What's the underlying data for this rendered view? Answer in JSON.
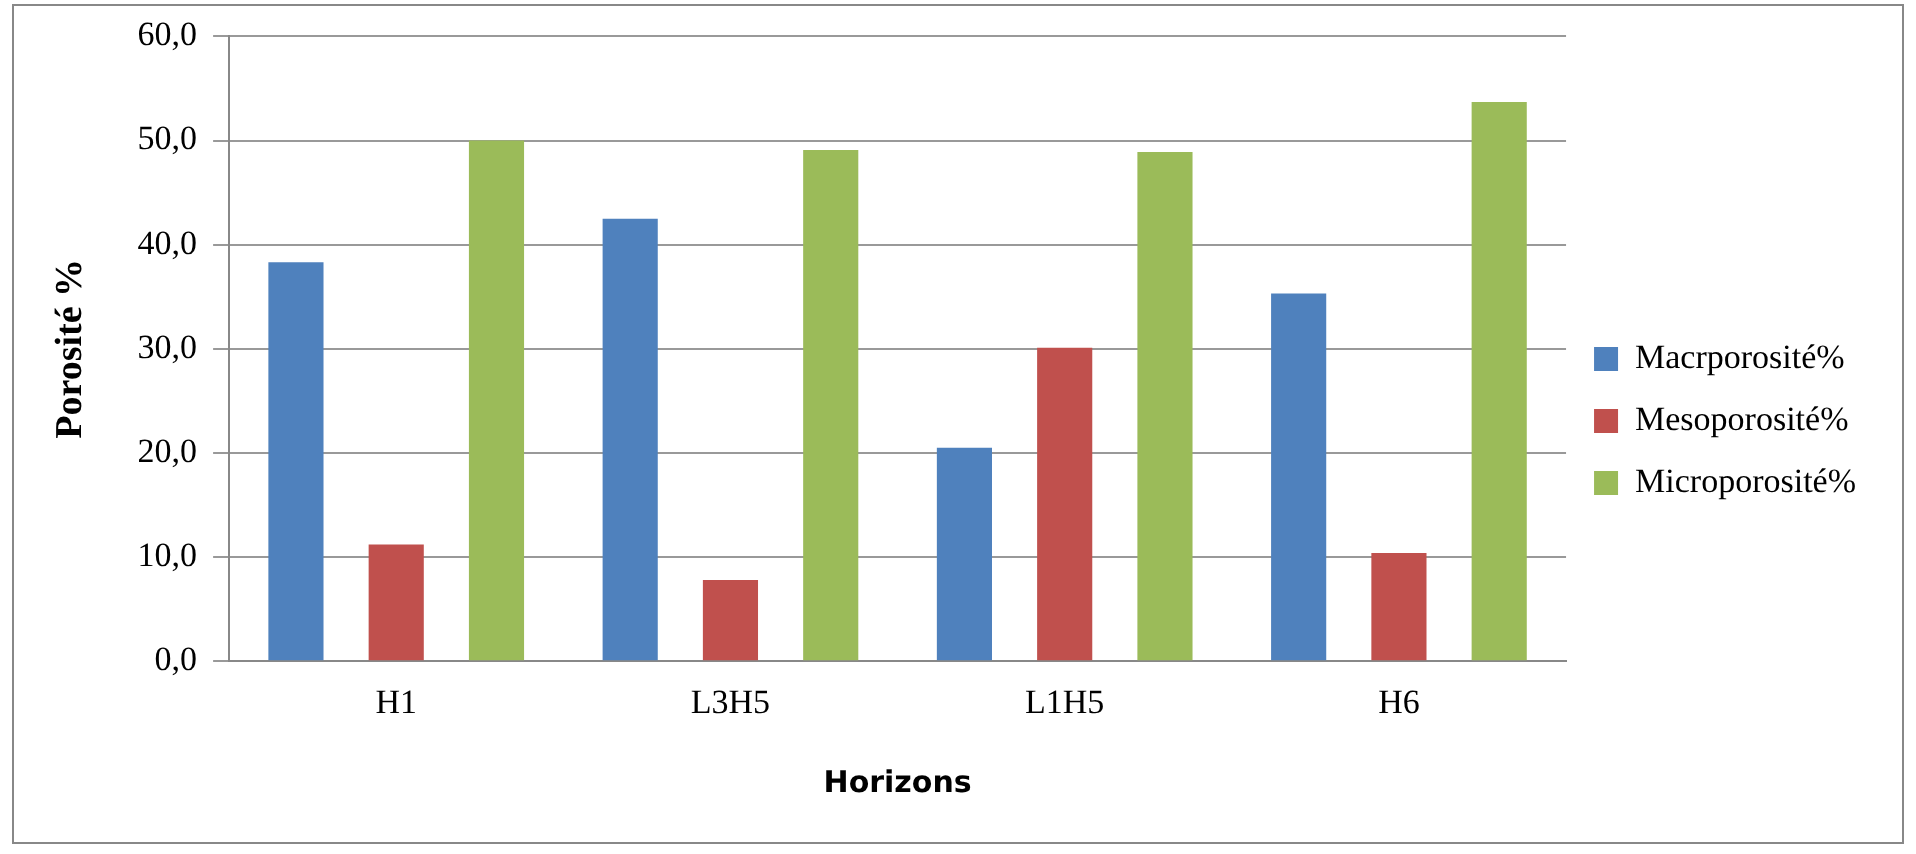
{
  "chart_data": {
    "type": "bar",
    "xlabel": "Horizons",
    "ylabel": "Porosité %",
    "categories": [
      "H1",
      "L3H5",
      "L1H5",
      "H6"
    ],
    "series": [
      {
        "name": "Macrporosité%",
        "color": "#4f81bd",
        "values": [
          38.3,
          42.5,
          20.5,
          35.3
        ]
      },
      {
        "name": "Mesoporosité%",
        "color": "#c0504d",
        "values": [
          11.2,
          7.8,
          30.1,
          10.4
        ]
      },
      {
        "name": "Microporosité%",
        "color": "#9bbb59",
        "values": [
          50.0,
          49.1,
          48.9,
          53.7
        ]
      }
    ],
    "ylim": [
      0,
      60
    ],
    "yticks": [
      {
        "value": 0,
        "label": "0,0"
      },
      {
        "value": 10,
        "label": "10,0"
      },
      {
        "value": 20,
        "label": "20,0"
      },
      {
        "value": 30,
        "label": "30,0"
      },
      {
        "value": 40,
        "label": "40,0"
      },
      {
        "value": 50,
        "label": "50,0"
      },
      {
        "value": 60,
        "label": "60,0"
      }
    ],
    "grid": "y",
    "legend": "right"
  }
}
